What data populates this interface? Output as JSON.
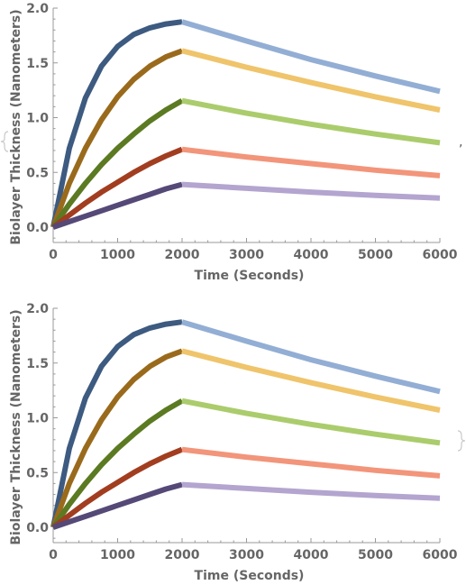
{
  "list_separator": ",",
  "chart_data": [
    {
      "type": "line",
      "xlabel": "Time (Seconds)",
      "ylabel": "Biolayer Thickness (Nanometers)",
      "xlim": [
        0,
        6000
      ],
      "ylim": [
        0,
        2.0
      ],
      "x_ticks": [
        "0",
        "1000",
        "2000",
        "3000",
        "4000",
        "5000",
        "6000"
      ],
      "y_ticks": [
        "0.0",
        "0.5",
        "1.0",
        "1.5",
        "2.0"
      ],
      "series": [
        {
          "association_color": "#3d5a80",
          "dissociation_color": "#93aed4",
          "points": [
            [
              0,
              0.0
            ],
            [
              250,
              0.72
            ],
            [
              500,
              1.18
            ],
            [
              750,
              1.47
            ],
            [
              1000,
              1.65
            ],
            [
              1250,
              1.76
            ],
            [
              1500,
              1.82
            ],
            [
              1750,
              1.855
            ],
            [
              2000,
              1.875
            ],
            [
              3000,
              1.7
            ],
            [
              4000,
              1.53
            ],
            [
              5000,
              1.38
            ],
            [
              6000,
              1.24
            ]
          ]
        },
        {
          "association_color": "#9a6a1c",
          "dissociation_color": "#efc46b",
          "points": [
            [
              0,
              0.0
            ],
            [
              250,
              0.4
            ],
            [
              500,
              0.72
            ],
            [
              750,
              0.98
            ],
            [
              1000,
              1.19
            ],
            [
              1250,
              1.35
            ],
            [
              1500,
              1.47
            ],
            [
              1750,
              1.555
            ],
            [
              2000,
              1.61
            ],
            [
              3000,
              1.46
            ],
            [
              4000,
              1.32
            ],
            [
              5000,
              1.19
            ],
            [
              6000,
              1.07
            ]
          ]
        },
        {
          "association_color": "#5b7a22",
          "dissociation_color": "#abcc6c",
          "points": [
            [
              0,
              0.0
            ],
            [
              250,
              0.21
            ],
            [
              500,
              0.4
            ],
            [
              750,
              0.57
            ],
            [
              1000,
              0.72
            ],
            [
              1250,
              0.85
            ],
            [
              1500,
              0.97
            ],
            [
              1750,
              1.07
            ],
            [
              2000,
              1.155
            ],
            [
              3000,
              1.04
            ],
            [
              4000,
              0.94
            ],
            [
              5000,
              0.85
            ],
            [
              6000,
              0.77
            ]
          ]
        },
        {
          "association_color": "#a23d20",
          "dissociation_color": "#f2957a",
          "points": [
            [
              0,
              0.0
            ],
            [
              250,
              0.11
            ],
            [
              500,
              0.22
            ],
            [
              750,
              0.32
            ],
            [
              1000,
              0.41
            ],
            [
              1250,
              0.5
            ],
            [
              1500,
              0.58
            ],
            [
              1750,
              0.65
            ],
            [
              2000,
              0.71
            ],
            [
              3000,
              0.64
            ],
            [
              4000,
              0.58
            ],
            [
              5000,
              0.52
            ],
            [
              6000,
              0.47
            ]
          ]
        },
        {
          "association_color": "#554977",
          "dissociation_color": "#b3a5cf",
          "points": [
            [
              0,
              0.0
            ],
            [
              250,
              0.05
            ],
            [
              500,
              0.1
            ],
            [
              750,
              0.15
            ],
            [
              1000,
              0.2
            ],
            [
              1250,
              0.25
            ],
            [
              1500,
              0.3
            ],
            [
              1750,
              0.35
            ],
            [
              2000,
              0.39
            ],
            [
              3000,
              0.355
            ],
            [
              4000,
              0.32
            ],
            [
              5000,
              0.29
            ],
            [
              6000,
              0.265
            ]
          ]
        }
      ]
    },
    {
      "type": "line",
      "xlabel": "Time (Seconds)",
      "ylabel": "Biolayer Thickness (Nanometers)",
      "xlim": [
        0,
        6000
      ],
      "ylim": [
        0,
        2.0
      ],
      "x_ticks": [
        "0",
        "1000",
        "2000",
        "3000",
        "4000",
        "5000",
        "6000"
      ],
      "y_ticks": [
        "0.0",
        "0.5",
        "1.0",
        "1.5",
        "2.0"
      ],
      "series": [
        {
          "association_color": "#3d5a80",
          "dissociation_color": "#93aed4",
          "points": [
            [
              0,
              0.0
            ],
            [
              250,
              0.72
            ],
            [
              500,
              1.18
            ],
            [
              750,
              1.47
            ],
            [
              1000,
              1.65
            ],
            [
              1250,
              1.76
            ],
            [
              1500,
              1.82
            ],
            [
              1750,
              1.855
            ],
            [
              2000,
              1.875
            ],
            [
              3000,
              1.7
            ],
            [
              4000,
              1.53
            ],
            [
              5000,
              1.38
            ],
            [
              6000,
              1.24
            ]
          ]
        },
        {
          "association_color": "#9a6a1c",
          "dissociation_color": "#efc46b",
          "points": [
            [
              0,
              0.0
            ],
            [
              250,
              0.4
            ],
            [
              500,
              0.72
            ],
            [
              750,
              0.98
            ],
            [
              1000,
              1.19
            ],
            [
              1250,
              1.35
            ],
            [
              1500,
              1.47
            ],
            [
              1750,
              1.555
            ],
            [
              2000,
              1.61
            ],
            [
              3000,
              1.46
            ],
            [
              4000,
              1.32
            ],
            [
              5000,
              1.19
            ],
            [
              6000,
              1.07
            ]
          ]
        },
        {
          "association_color": "#5b7a22",
          "dissociation_color": "#abcc6c",
          "points": [
            [
              0,
              0.0
            ],
            [
              250,
              0.21
            ],
            [
              500,
              0.4
            ],
            [
              750,
              0.57
            ],
            [
              1000,
              0.72
            ],
            [
              1250,
              0.85
            ],
            [
              1500,
              0.97
            ],
            [
              1750,
              1.07
            ],
            [
              2000,
              1.155
            ],
            [
              3000,
              1.04
            ],
            [
              4000,
              0.94
            ],
            [
              5000,
              0.85
            ],
            [
              6000,
              0.77
            ]
          ]
        },
        {
          "association_color": "#a23d20",
          "dissociation_color": "#f2957a",
          "points": [
            [
              0,
              0.0
            ],
            [
              250,
              0.11
            ],
            [
              500,
              0.22
            ],
            [
              750,
              0.32
            ],
            [
              1000,
              0.41
            ],
            [
              1250,
              0.5
            ],
            [
              1500,
              0.58
            ],
            [
              1750,
              0.65
            ],
            [
              2000,
              0.71
            ],
            [
              3000,
              0.64
            ],
            [
              4000,
              0.58
            ],
            [
              5000,
              0.52
            ],
            [
              6000,
              0.47
            ]
          ]
        },
        {
          "association_color": "#554977",
          "dissociation_color": "#b3a5cf",
          "points": [
            [
              0,
              0.0
            ],
            [
              250,
              0.05
            ],
            [
              500,
              0.1
            ],
            [
              750,
              0.15
            ],
            [
              1000,
              0.2
            ],
            [
              1250,
              0.25
            ],
            [
              1500,
              0.3
            ],
            [
              1750,
              0.35
            ],
            [
              2000,
              0.39
            ],
            [
              3000,
              0.355
            ],
            [
              4000,
              0.32
            ],
            [
              5000,
              0.29
            ],
            [
              6000,
              0.265
            ]
          ]
        }
      ]
    }
  ]
}
